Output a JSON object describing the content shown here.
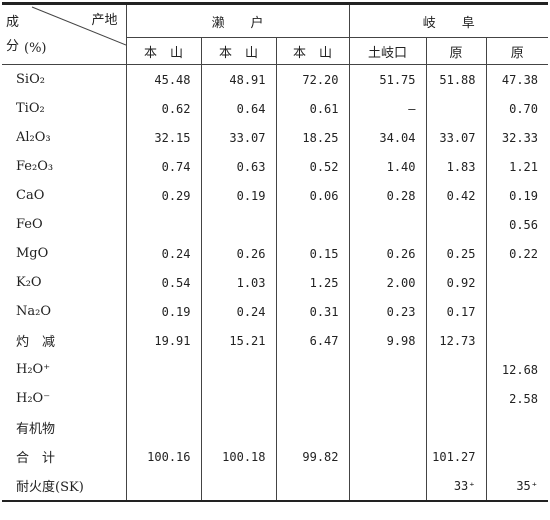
{
  "table": {
    "corner": {
      "col_label": "产地",
      "row_label": [
        "成",
        "分",
        "(%)"
      ]
    },
    "groups": [
      "濑　　户",
      "岐　　阜"
    ],
    "columns": [
      "本　山",
      "本　山",
      "本　山",
      "土岐口",
      "原",
      "原"
    ],
    "rows": [
      {
        "label": "SiO₂",
        "values": [
          "45.48",
          "48.91",
          "72.20",
          "51.75",
          "51.88",
          "47.38"
        ]
      },
      {
        "label": "TiO₂",
        "values": [
          "0.62",
          "0.64",
          "0.61",
          "—",
          null,
          "0.70"
        ]
      },
      {
        "label": "Al₂O₃",
        "values": [
          "32.15",
          "33.07",
          "18.25",
          "34.04",
          "33.07",
          "32.33"
        ]
      },
      {
        "label": "Fe₂O₃",
        "values": [
          "0.74",
          "0.63",
          "0.52",
          "1.40",
          "1.83",
          "1.21"
        ]
      },
      {
        "label": "CaO",
        "values": [
          "0.29",
          "0.19",
          "0.06",
          "0.28",
          "0.42",
          "0.19"
        ]
      },
      {
        "label": "FeO",
        "values": [
          null,
          null,
          null,
          null,
          null,
          "0.56"
        ]
      },
      {
        "label": "MgO",
        "values": [
          "0.24",
          "0.26",
          "0.15",
          "0.26",
          "0.25",
          "0.22"
        ]
      },
      {
        "label": "K₂O",
        "values": [
          "0.54",
          "1.03",
          "1.25",
          "2.00",
          "0.92",
          null
        ]
      },
      {
        "label": "Na₂O",
        "values": [
          "0.19",
          "0.24",
          "0.31",
          "0.23",
          "0.17",
          null
        ]
      },
      {
        "label": "灼　减",
        "values": [
          "19.91",
          "15.21",
          "6.47",
          "9.98",
          "12.73",
          null
        ]
      },
      {
        "label": "H₂O⁺",
        "values": [
          null,
          null,
          null,
          null,
          null,
          "12.68"
        ]
      },
      {
        "label": "H₂O⁻",
        "values": [
          null,
          null,
          null,
          null,
          null,
          "2.58"
        ]
      },
      {
        "label": "有机物",
        "values": [
          null,
          null,
          null,
          null,
          null,
          null
        ]
      },
      {
        "label": "合　计",
        "values": [
          "100.16",
          "100.18",
          "99.82",
          null,
          "101.27",
          null
        ]
      },
      {
        "label": "耐火度(SK)",
        "values": [
          null,
          null,
          null,
          null,
          "33⁺",
          "35⁺"
        ]
      }
    ]
  }
}
